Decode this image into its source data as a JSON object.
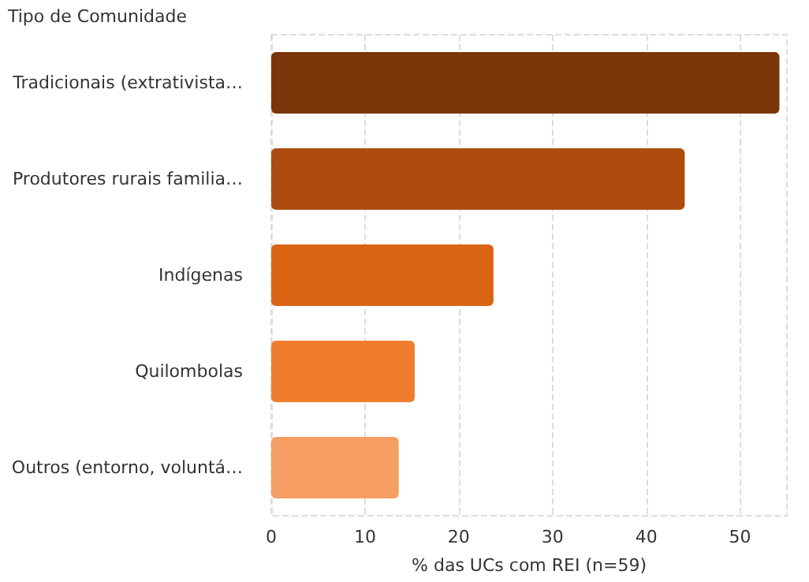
{
  "chart_data": {
    "type": "bar",
    "orientation": "horizontal",
    "ylabel": "Tipo de Comunidade",
    "xlabel": "% das UCs com REI (n=59)",
    "categories": [
      "Tradicionais (extrativista…",
      "Produtores rurais familia…",
      "Indígenas",
      "Quilombolas",
      "Outros (entorno, voluntá…"
    ],
    "values": [
      54.2,
      44.1,
      23.7,
      15.3,
      13.6
    ],
    "colors": [
      "#7a3608",
      "#ad4c0e",
      "#d96414",
      "#f07d2e",
      "#f59d62"
    ],
    "xlim": [
      0,
      55
    ],
    "xticks": [
      0,
      10,
      20,
      30,
      40,
      50
    ],
    "grid": "x"
  }
}
